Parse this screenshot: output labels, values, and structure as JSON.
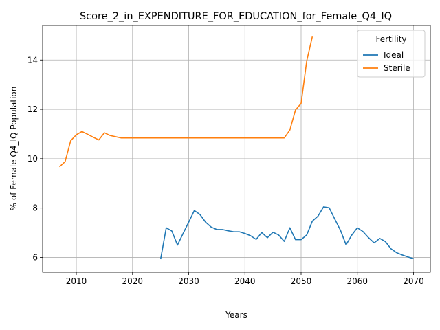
{
  "chart_data": {
    "type": "line",
    "title": "Score_2_in_EXPENDITURE_FOR_EDUCATION_for_Female_Q4_IQ",
    "xlabel": "Years",
    "ylabel": "% of Female Q4_IQ Population",
    "xlim": [
      2004,
      2073
    ],
    "ylim": [
      5.4,
      15.4
    ],
    "xticks": [
      2010,
      2020,
      2030,
      2040,
      2050,
      2060,
      2070
    ],
    "yticks": [
      6,
      8,
      10,
      12,
      14
    ],
    "grid": true,
    "legend": {
      "title": "Fertility",
      "placement": "top-right"
    },
    "series": [
      {
        "name": "Ideal",
        "color": "#1f77b4",
        "points": [
          [
            2025,
            5.93
          ],
          [
            2026,
            7.2
          ],
          [
            2027,
            7.07
          ],
          [
            2028,
            6.5
          ],
          [
            2029,
            6.97
          ],
          [
            2030,
            7.43
          ],
          [
            2031,
            7.9
          ],
          [
            2032,
            7.74
          ],
          [
            2033,
            7.43
          ],
          [
            2034,
            7.23
          ],
          [
            2035,
            7.13
          ],
          [
            2036,
            7.13
          ],
          [
            2037,
            7.08
          ],
          [
            2038,
            7.04
          ],
          [
            2039,
            7.04
          ],
          [
            2040,
            6.97
          ],
          [
            2041,
            6.88
          ],
          [
            2042,
            6.73
          ],
          [
            2043,
            7.01
          ],
          [
            2044,
            6.8
          ],
          [
            2045,
            7.02
          ],
          [
            2046,
            6.91
          ],
          [
            2047,
            6.65
          ],
          [
            2048,
            7.2
          ],
          [
            2049,
            6.72
          ],
          [
            2050,
            6.72
          ],
          [
            2051,
            6.91
          ],
          [
            2052,
            7.47
          ],
          [
            2053,
            7.67
          ],
          [
            2054,
            8.05
          ],
          [
            2055,
            8.01
          ],
          [
            2056,
            7.55
          ],
          [
            2057,
            7.1
          ],
          [
            2058,
            6.51
          ],
          [
            2059,
            6.9
          ],
          [
            2060,
            7.2
          ],
          [
            2061,
            7.05
          ],
          [
            2062,
            6.8
          ],
          [
            2063,
            6.59
          ],
          [
            2064,
            6.77
          ],
          [
            2065,
            6.64
          ],
          [
            2066,
            6.35
          ],
          [
            2067,
            6.19
          ],
          [
            2068,
            6.1
          ],
          [
            2069,
            6.02
          ],
          [
            2070,
            5.95
          ]
        ]
      },
      {
        "name": "Sterile",
        "color": "#ff7f0e",
        "points": [
          [
            2007,
            9.67
          ],
          [
            2008,
            9.88
          ],
          [
            2009,
            10.73
          ],
          [
            2010,
            10.97
          ],
          [
            2011,
            11.1
          ],
          [
            2012,
            10.99
          ],
          [
            2013,
            10.87
          ],
          [
            2014,
            10.76
          ],
          [
            2015,
            11.05
          ],
          [
            2016,
            10.94
          ],
          [
            2017,
            10.89
          ],
          [
            2018,
            10.84
          ],
          [
            2019,
            10.84
          ],
          [
            2020,
            10.84
          ],
          [
            2021,
            10.84
          ],
          [
            2022,
            10.84
          ],
          [
            2023,
            10.84
          ],
          [
            2024,
            10.84
          ],
          [
            2025,
            10.84
          ],
          [
            2026,
            10.84
          ],
          [
            2027,
            10.84
          ],
          [
            2028,
            10.84
          ],
          [
            2029,
            10.84
          ],
          [
            2030,
            10.84
          ],
          [
            2031,
            10.84
          ],
          [
            2032,
            10.84
          ],
          [
            2033,
            10.84
          ],
          [
            2034,
            10.84
          ],
          [
            2035,
            10.84
          ],
          [
            2036,
            10.84
          ],
          [
            2037,
            10.84
          ],
          [
            2038,
            10.84
          ],
          [
            2039,
            10.84
          ],
          [
            2040,
            10.84
          ],
          [
            2041,
            10.84
          ],
          [
            2042,
            10.84
          ],
          [
            2043,
            10.84
          ],
          [
            2044,
            10.84
          ],
          [
            2045,
            10.84
          ],
          [
            2046,
            10.84
          ],
          [
            2047,
            10.84
          ],
          [
            2048,
            11.16
          ],
          [
            2049,
            11.97
          ],
          [
            2050,
            12.24
          ],
          [
            2051,
            13.96
          ],
          [
            2052,
            14.95
          ]
        ]
      }
    ]
  }
}
